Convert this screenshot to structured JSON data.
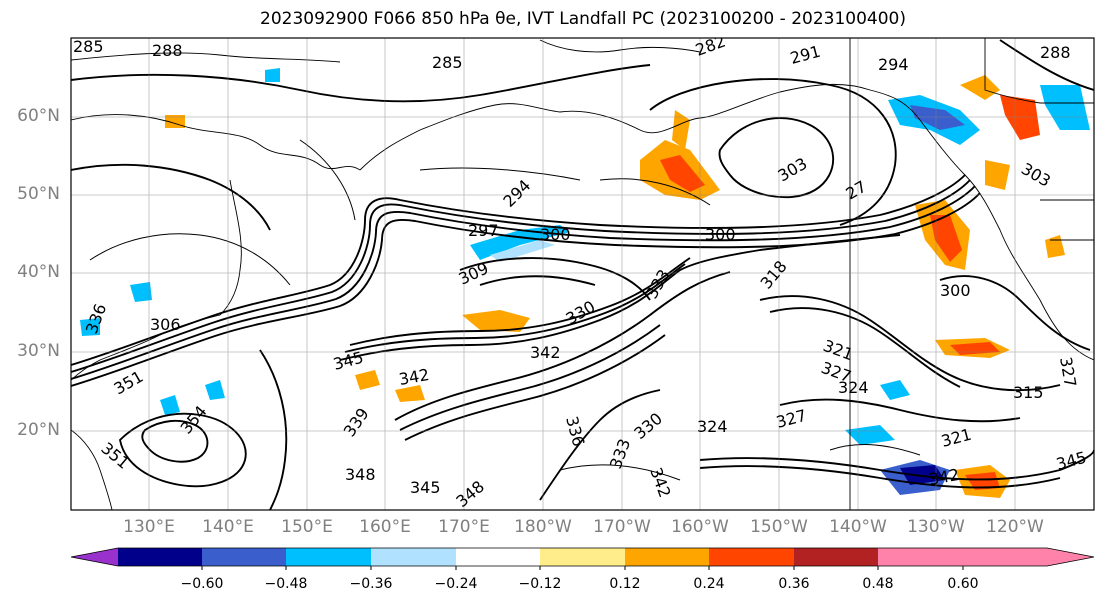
{
  "title": "2023092900 F066 850 hPa θe, IVT Landfall PC (2023100200 - 2023100400)",
  "map": {
    "lat_labels": [
      "60°N",
      "50°N",
      "40°N",
      "30°N",
      "20°N"
    ],
    "lon_labels": [
      "130°E",
      "140°E",
      "150°E",
      "160°E",
      "170°E",
      "180°W",
      "170°W",
      "160°W",
      "150°W",
      "140°W",
      "130°W",
      "120°W"
    ],
    "contour_labels": [
      "285",
      "288",
      "285",
      "282",
      "291",
      "294",
      "288",
      "303",
      "294",
      "297",
      "300",
      "300",
      "309",
      "330",
      "333",
      "336",
      "306",
      "345",
      "342",
      "342",
      "351",
      "354",
      "351",
      "339",
      "348",
      "345",
      "348",
      "342",
      "336",
      "330",
      "333",
      "324",
      "327",
      "324",
      "321",
      "327",
      "321",
      "342",
      "345",
      "315",
      "300",
      "318",
      "27",
      "303",
      "327"
    ]
  },
  "colorbar": {
    "tick_labels": [
      "−0.60",
      "−0.48",
      "−0.36",
      "−0.24",
      "−0.12",
      "0.12",
      "0.24",
      "0.36",
      "0.48",
      "0.60"
    ],
    "colors": [
      "#9932cc",
      "#00008b",
      "#3a5fcd",
      "#00bfff",
      "#b0e2ff",
      "#ffffff",
      "#ffec8b",
      "#ffa500",
      "#ff4500",
      "#b22222",
      "#ff82ab"
    ]
  }
}
